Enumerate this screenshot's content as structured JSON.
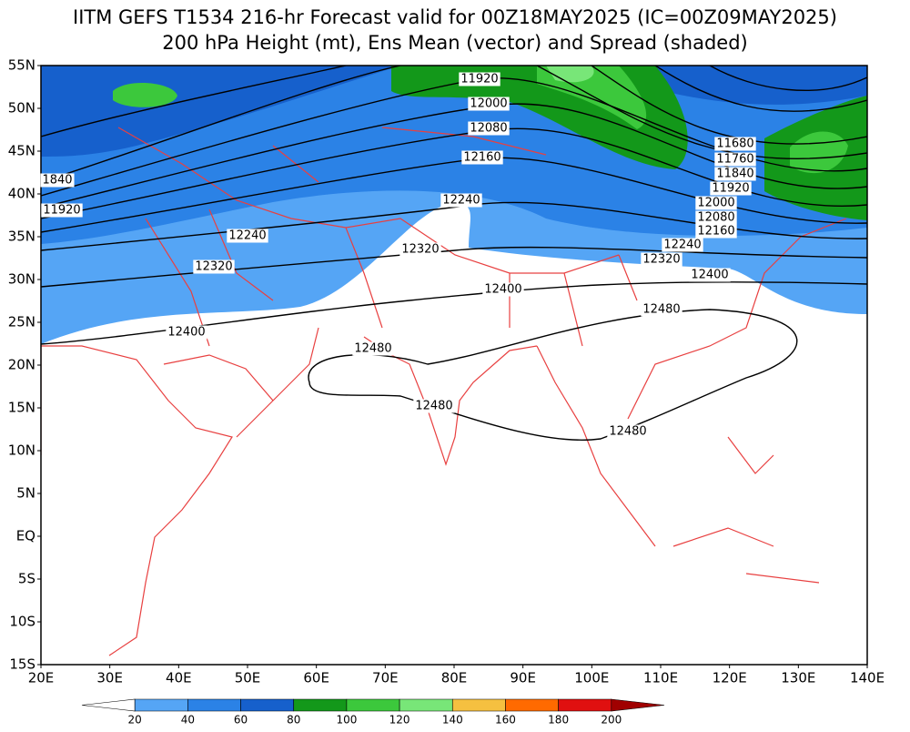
{
  "title": [
    "IITM GEFS T1534 216-hr Forecast valid for 00Z18MAY2025 (IC=00Z09MAY2025)",
    "200 hPa Height (mt), Ens Mean (vector) and Spread (shaded)"
  ],
  "lat_labels": [
    "55N",
    "50N",
    "45N",
    "40N",
    "35N",
    "30N",
    "25N",
    "20N",
    "15N",
    "10N",
    "5N",
    "EQ",
    "5S",
    "10S",
    "15S"
  ],
  "lon_labels": [
    "20E",
    "30E",
    "40E",
    "50E",
    "60E",
    "70E",
    "80E",
    "90E",
    "100E",
    "110E",
    "120E",
    "130E",
    "140E"
  ],
  "contour_labels": [
    11920,
    12000,
    12080,
    12160,
    12240,
    12320,
    12400,
    12480,
    12400,
    12320,
    12240,
    12160,
    12080,
    12000,
    11920,
    11840,
    11760,
    11680,
    1840,
    11920,
    12240,
    12320,
    12400,
    12480,
    12480,
    12480
  ],
  "colorbar": {
    "labels": [
      20,
      40,
      60,
      80,
      100,
      120,
      140,
      160,
      180,
      200
    ],
    "colors": [
      "#ffffff",
      "#55a5f5",
      "#2b82e6",
      "#1660cc",
      "#13981a",
      "#3cc83c",
      "#78e678",
      "#f5c040",
      "#ff6a00",
      "#e01010",
      "#a00000"
    ]
  }
}
